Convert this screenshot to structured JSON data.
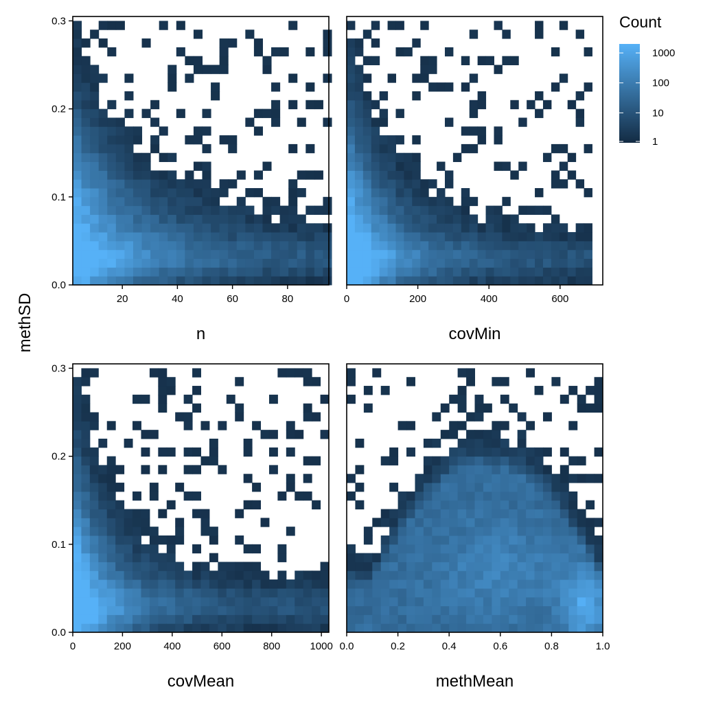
{
  "chart_data": {
    "type": "heatmap",
    "shared_ylabel": "methSD",
    "legend": {
      "title": "Count",
      "scale": "log10",
      "breaks": [
        1,
        10,
        100,
        1000
      ],
      "labels": [
        "1",
        "10",
        "100",
        "1000"
      ],
      "colors": {
        "low": "#132B43",
        "high": "#56B1F7"
      },
      "placement": "top-right"
    },
    "panels": [
      {
        "name": "n",
        "xlabel": "n",
        "xlim": [
          2,
          95
        ],
        "xticks": [
          20,
          40,
          60,
          80
        ],
        "ylim": [
          0,
          0.305
        ],
        "yticks": [
          0.0,
          0.1,
          0.2,
          0.3
        ],
        "ytick_labels": [
          "0.0",
          "0.1",
          "0.2",
          "0.3"
        ],
        "x_bins": [
          2,
          96,
          30
        ],
        "y_bins": [
          0.0,
          0.3,
          30
        ],
        "density": {
          "shape": "decay",
          "peak_x": 5,
          "peak_y": 0.05,
          "x_decay": 26,
          "max_x": 95
        }
      },
      {
        "name": "covMin",
        "xlabel": "covMin",
        "xlim": [
          0,
          720
        ],
        "xticks": [
          0,
          200,
          400,
          600
        ],
        "ylim": [
          0,
          0.305
        ],
        "yticks": [
          0.0,
          0.1,
          0.2,
          0.3
        ],
        "ytick_labels": [
          "0.0",
          "0.1",
          "0.2",
          "0.3"
        ],
        "x_bins": [
          0,
          690,
          30
        ],
        "y_bins": [
          0.0,
          0.3,
          30
        ],
        "density": {
          "shape": "decay",
          "peak_x": 30,
          "peak_y": 0.04,
          "x_decay": 140,
          "max_x": 690
        }
      },
      {
        "name": "covMean",
        "xlabel": "covMean",
        "xlim": [
          0,
          1030
        ],
        "xticks": [
          0,
          200,
          400,
          600,
          800,
          1000
        ],
        "ylim": [
          0,
          0.305
        ],
        "yticks": [
          0.0,
          0.1,
          0.2,
          0.3
        ],
        "ytick_labels": [
          "0.0",
          "0.1",
          "0.2",
          "0.3"
        ],
        "x_bins": [
          0,
          1030,
          30
        ],
        "y_bins": [
          0.0,
          0.3,
          30
        ],
        "density": {
          "shape": "decay",
          "peak_x": 40,
          "peak_y": 0.04,
          "x_decay": 180,
          "max_x": 1030
        }
      },
      {
        "name": "methMean",
        "xlabel": "methMean",
        "xlim": [
          0,
          1.0
        ],
        "xticks": [
          0.0,
          0.2,
          0.4,
          0.6,
          0.8,
          1.0
        ],
        "xtick_labels": [
          "0.0",
          "0.2",
          "0.4",
          "0.6",
          "0.8",
          "1.0"
        ],
        "ylim": [
          0,
          0.305
        ],
        "yticks": [
          0.0,
          0.1,
          0.2,
          0.3
        ],
        "ytick_labels": [
          "0.0",
          "0.1",
          "0.2",
          "0.3"
        ],
        "x_bins": [
          0,
          1.0,
          30
        ],
        "y_bins": [
          0.0,
          0.3,
          30
        ],
        "density": {
          "shape": "arch",
          "peak_x": 0.93,
          "peak_y": 0.03,
          "max_x": 1.0
        }
      }
    ]
  }
}
